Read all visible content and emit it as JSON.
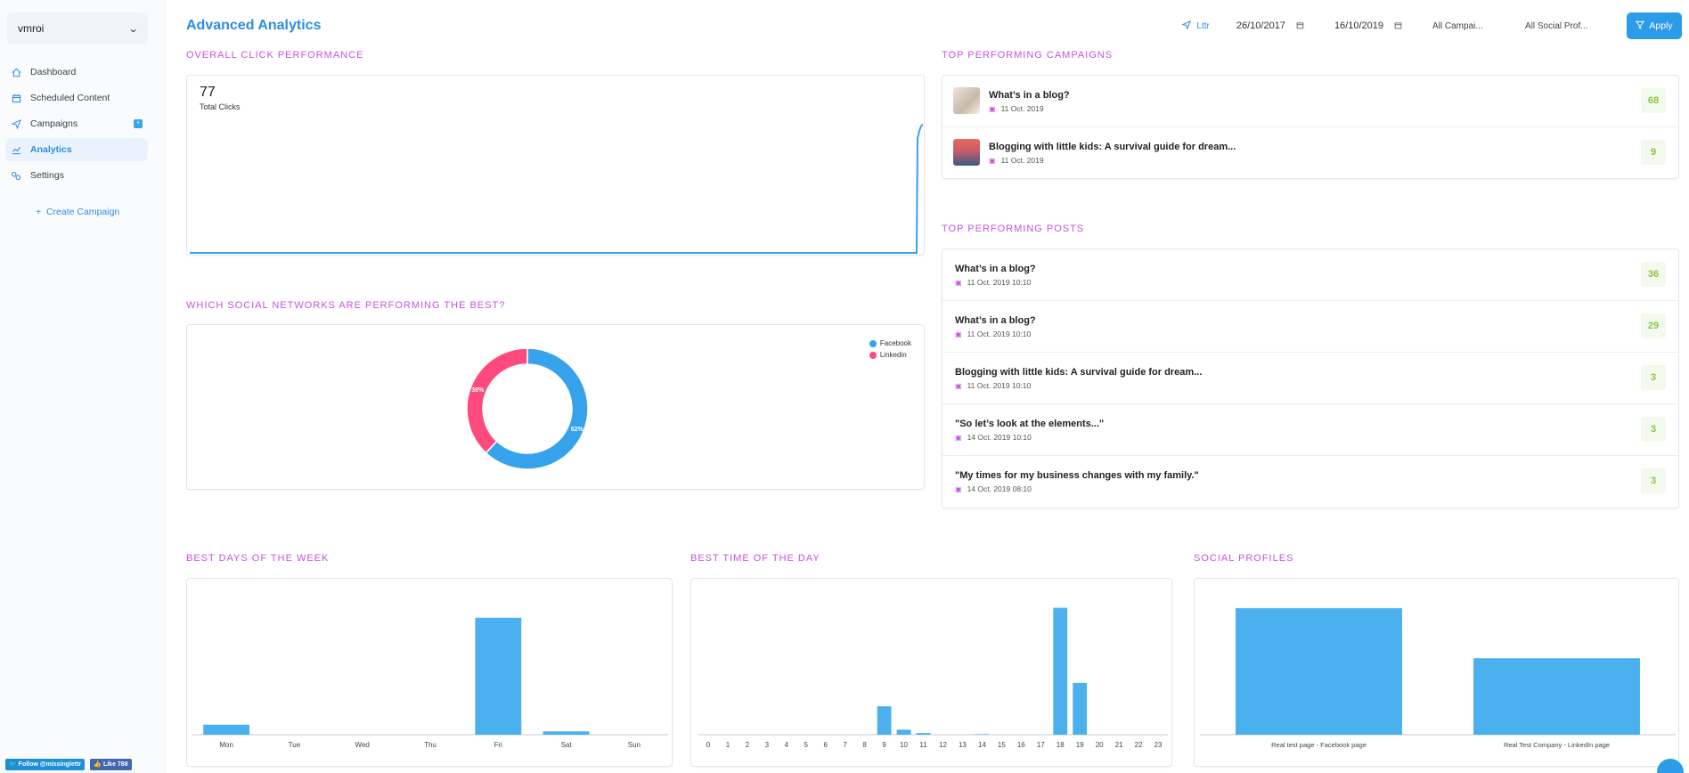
{
  "sidebar": {
    "workspace": "vmroi",
    "nav": [
      {
        "label": "Dashboard",
        "icon": "home-icon"
      },
      {
        "label": "Scheduled Content",
        "icon": "calendar-icon"
      },
      {
        "label": "Campaigns",
        "icon": "paper-plane-icon",
        "badge": "+"
      },
      {
        "label": "Analytics",
        "icon": "analytics-icon",
        "active": true
      },
      {
        "label": "Settings",
        "icon": "gears-icon"
      }
    ],
    "create_campaign": "Create Campaign",
    "twitter_follow": "Follow @missinglettr",
    "facebook_like": "Like 788"
  },
  "header": {
    "title": "Advanced Analytics",
    "client": "Lttr",
    "date_from": "26/10/2017",
    "date_to": "16/10/2019",
    "campaign_filter": "All Campai...",
    "profile_filter": "All Social Prof...",
    "apply": "Apply"
  },
  "clicks": {
    "section_title": "Overall Click Performance",
    "total": "77",
    "total_label": "Total Clicks"
  },
  "networks": {
    "section_title": "Which Social Networks Are Performing The Best?",
    "legend": [
      {
        "name": "Facebook",
        "color": "#36a2eb"
      },
      {
        "name": "Linkedin",
        "color": "#ff4a7e"
      }
    ]
  },
  "top_campaigns": {
    "section_title": "Top Performing Campaigns",
    "items": [
      {
        "title": "What’s in a blog?",
        "date": "11 Oct. 2019",
        "score": "68"
      },
      {
        "title": "Blogging with little kids: A survival guide for dream...",
        "date": "11 Oct. 2019",
        "score": "9"
      }
    ]
  },
  "top_posts": {
    "section_title": "Top Performing Posts",
    "items": [
      {
        "title": "What’s in a blog?",
        "date": "11 Oct. 2019 10:10",
        "score": "36"
      },
      {
        "title": "What’s in a blog?",
        "date": "11 Oct. 2019 10:10",
        "score": "29"
      },
      {
        "title": "Blogging with little kids: A survival guide for dream...",
        "date": "11 Oct. 2019 10:10",
        "score": "3"
      },
      {
        "title": "\"So let’s look at the elements...\"",
        "date": "14 Oct. 2019 10:10",
        "score": "3"
      },
      {
        "title": "\"My times for my business changes with my family.\"",
        "date": "14 Oct. 2019 08:10",
        "score": "3"
      }
    ]
  },
  "days": {
    "section_title": "Best Days Of The Week"
  },
  "hours": {
    "section_title": "Best Time Of The Day"
  },
  "profiles": {
    "section_title": "Social Profiles"
  },
  "chart_data": [
    {
      "type": "line",
      "title": "Overall Click Performance",
      "series": [
        {
          "values": [
            0,
            0,
            0,
            0,
            0,
            0,
            0,
            0,
            0,
            0,
            0,
            0,
            0,
            0,
            0,
            0,
            0,
            0,
            0,
            0,
            0,
            0,
            0,
            0,
            0,
            0,
            0,
            0,
            0,
            0,
            0,
            0,
            0,
            0,
            0,
            0,
            0,
            0,
            0,
            0,
            0,
            0,
            0,
            0,
            0,
            0,
            0,
            0,
            0,
            77
          ]
        }
      ],
      "ylim": [
        0,
        85
      ]
    },
    {
      "type": "pie",
      "categories": [
        "Facebook",
        "Linkedin"
      ],
      "values": [
        62,
        38
      ],
      "labels": [
        "62%",
        "38%"
      ],
      "colors": [
        "#36a2eb",
        "#ff4a7e"
      ]
    },
    {
      "type": "bar",
      "title": "Best Days Of The Week",
      "categories": [
        "Mon",
        "Tue",
        "Wed",
        "Thu",
        "Fri",
        "Sat",
        "Sun"
      ],
      "values": [
        6,
        0,
        0,
        0,
        70,
        2,
        0
      ],
      "ylim": [
        0,
        80
      ]
    },
    {
      "type": "bar",
      "title": "Best Time Of The Day",
      "categories": [
        "0",
        "1",
        "2",
        "3",
        "4",
        "5",
        "6",
        "7",
        "8",
        "9",
        "10",
        "11",
        "12",
        "13",
        "14",
        "15",
        "16",
        "17",
        "18",
        "19",
        "20",
        "21",
        "22",
        "23"
      ],
      "values": [
        0,
        0,
        0,
        0,
        0,
        0,
        0,
        0,
        0,
        17,
        3,
        1,
        0,
        0,
        0.3,
        0,
        0,
        0,
        76,
        31,
        0,
        0,
        0,
        0
      ],
      "ylim": [
        0,
        80
      ]
    },
    {
      "type": "bar",
      "title": "Social Profiles",
      "categories": [
        "Real test page - Facebook page",
        "Real Test Company - LinkedIn page"
      ],
      "values": [
        48,
        29
      ],
      "ylim": [
        0,
        50
      ]
    }
  ]
}
